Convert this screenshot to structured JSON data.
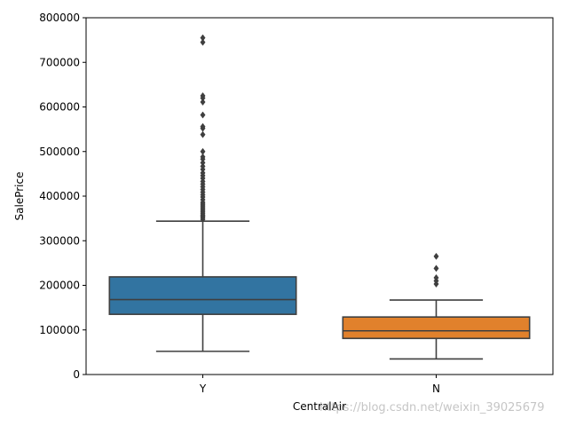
{
  "chart_data": {
    "type": "box",
    "xlabel": "CentralAir",
    "ylabel": "SalePrice",
    "ylim": [
      0,
      800000
    ],
    "yticks": [
      0,
      100000,
      200000,
      300000,
      400000,
      500000,
      600000,
      700000,
      800000
    ],
    "categories": [
      "Y",
      "N"
    ],
    "boxes": [
      {
        "category": "Y",
        "color": "#3274a1",
        "whisker_low": 52000,
        "q1": 135000,
        "median": 168000,
        "q3": 219000,
        "whisker_high": 344000,
        "outliers": [
          348000,
          352000,
          355000,
          358000,
          362000,
          366000,
          370000,
          374000,
          378000,
          382000,
          386000,
          392000,
          398000,
          403000,
          409000,
          415000,
          421000,
          427000,
          433000,
          440000,
          446000,
          452000,
          460000,
          467000,
          475000,
          483000,
          488000,
          500000,
          538000,
          552000,
          556000,
          582000,
          611000,
          620000,
          625000,
          745000,
          755000
        ]
      },
      {
        "category": "N",
        "color": "#e1812c",
        "whisker_low": 35000,
        "q1": 81000,
        "median": 98000,
        "q3": 129000,
        "whisker_high": 167000,
        "outliers": [
          203000,
          210000,
          217000,
          238000,
          265000
        ]
      }
    ]
  },
  "watermark": "https://blog.csdn.net/weixin_39025679"
}
